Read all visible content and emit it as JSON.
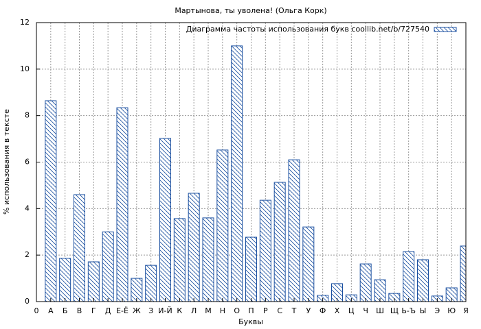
{
  "chart_data": {
    "type": "bar",
    "title": "Мартынова, ты уволена! (Ольга Корк)",
    "x_label": "Буквы",
    "y_label": "% использования в тексте",
    "categories": [
      "0",
      "А",
      "Б",
      "В",
      "Г",
      "Д",
      "Е-Ё",
      "Ж",
      "З",
      "И-Й",
      "К",
      "Л",
      "М",
      "Н",
      "О",
      "П",
      "Р",
      "С",
      "Т",
      "У",
      "Ф",
      "Х",
      "Ц",
      "Ч",
      "Ш",
      "Щ",
      "Ь-Ъ",
      "Ы",
      "Э",
      "Ю",
      "Я"
    ],
    "series": [
      {
        "name": "Диаграмма частоты использования букв coollib.net/b/727540",
        "color": "#1a4fa0",
        "values": [
          null,
          8.64,
          1.86,
          4.6,
          1.71,
          3.0,
          8.34,
          1.0,
          1.56,
          7.02,
          3.57,
          4.66,
          3.6,
          6.52,
          11.0,
          2.77,
          4.36,
          5.13,
          6.1,
          3.21,
          0.27,
          0.77,
          0.29,
          1.62,
          0.94,
          0.35,
          2.15,
          1.8,
          0.24,
          0.59,
          2.39
        ]
      }
    ],
    "ylim": [
      0,
      12
    ],
    "yticks": [
      0,
      2,
      4,
      6,
      8,
      10,
      12
    ],
    "grid": true,
    "legend": "top-right"
  }
}
